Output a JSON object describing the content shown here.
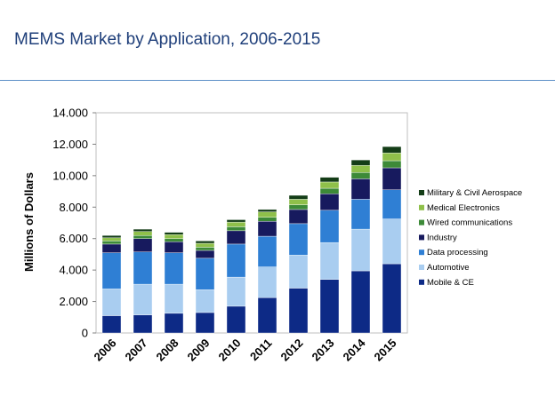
{
  "title": "MEMS Market by Application, 2006-2015",
  "chart_data": {
    "type": "bar",
    "stacked": true,
    "categories": [
      "2006",
      "2007",
      "2008",
      "2009",
      "2010",
      "2011",
      "2012",
      "2013",
      "2014",
      "2015"
    ],
    "ylabel": "Millions of Dollars",
    "xlabel": "",
    "ylim": [
      0,
      14000
    ],
    "yticks": [
      0,
      2000,
      4000,
      6000,
      8000,
      10000,
      12000,
      14000
    ],
    "ytick_labels": [
      "0",
      "2.000",
      "4.000",
      "6.000",
      "8.000",
      "10.000",
      "12.000",
      "14.000"
    ],
    "grid": false,
    "legend_position": "right",
    "series": [
      {
        "name": "Mobile & CE",
        "color": "#0d2a86",
        "values": [
          1100,
          1150,
          1250,
          1300,
          1700,
          2250,
          2850,
          3400,
          3950,
          4400
        ]
      },
      {
        "name": "Automotive",
        "color": "#a9cdf0",
        "values": [
          1700,
          1950,
          1850,
          1450,
          1850,
          1950,
          2100,
          2350,
          2650,
          2850
        ]
      },
      {
        "name": "Data processing",
        "color": "#2f7fd4",
        "values": [
          2300,
          2050,
          2000,
          2000,
          2100,
          1950,
          2000,
          2050,
          1900,
          1850
        ]
      },
      {
        "name": "Industry",
        "color": "#171a5e",
        "values": [
          550,
          850,
          700,
          500,
          850,
          950,
          900,
          1050,
          1300,
          1400
        ]
      },
      {
        "name": "Wired communications",
        "color": "#3d8a38",
        "values": [
          200,
          200,
          200,
          200,
          250,
          250,
          300,
          350,
          400,
          450
        ]
      },
      {
        "name": "Medical Electronics",
        "color": "#8fc04a",
        "values": [
          200,
          250,
          250,
          250,
          300,
          350,
          350,
          400,
          450,
          500
        ]
      },
      {
        "name": "Military & Civil Aerospace",
        "color": "#143d17",
        "values": [
          150,
          150,
          150,
          150,
          150,
          150,
          250,
          300,
          350,
          400
        ]
      }
    ]
  }
}
